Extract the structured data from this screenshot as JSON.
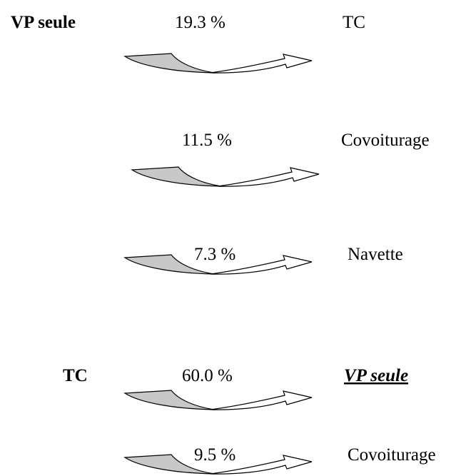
{
  "groups": [
    {
      "source": "VP seule",
      "flows": [
        {
          "share": "19.3 %",
          "target": "TC"
        },
        {
          "share": "11.5 %",
          "target": "Covoiturage"
        },
        {
          "share": "7.3 %",
          "target": "Navette"
        }
      ]
    },
    {
      "source": "TC",
      "flows": [
        {
          "share": "60.0 %",
          "target": "VP seule"
        },
        {
          "share": "9.5 %",
          "target": "Covoiturage"
        }
      ]
    }
  ]
}
